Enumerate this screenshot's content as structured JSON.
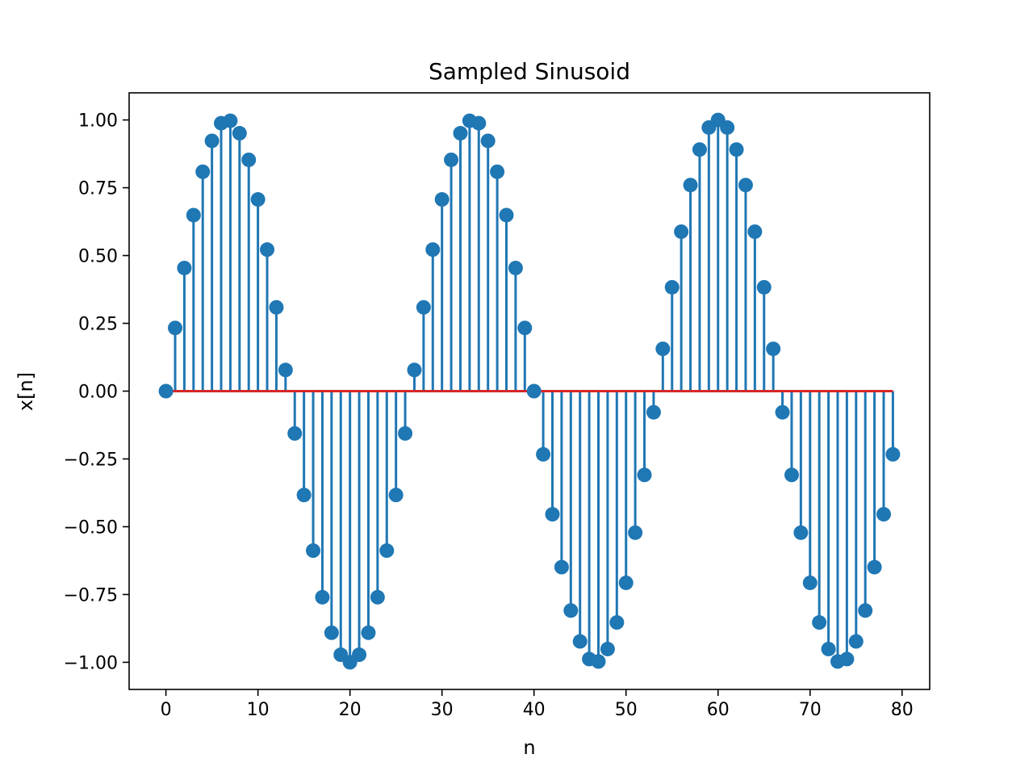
{
  "chart_data": {
    "type": "stem",
    "title": "Sampled Sinusoid",
    "xlabel": "n",
    "ylabel": "x[n]",
    "xlim": [
      -4,
      83
    ],
    "ylim": [
      -1.1,
      1.1
    ],
    "xticks": [
      0,
      10,
      20,
      30,
      40,
      50,
      60,
      70,
      80
    ],
    "xtick_labels": [
      "0",
      "10",
      "20",
      "30",
      "40",
      "50",
      "60",
      "70",
      "80"
    ],
    "yticks": [
      1.0,
      0.75,
      0.5,
      0.25,
      0.0,
      -0.25,
      -0.5,
      -0.75,
      -1.0
    ],
    "ytick_labels": [
      "1.00",
      "0.75",
      "0.50",
      "0.25",
      "0.00",
      "−0.25",
      "−0.50",
      "−0.75",
      "−1.00"
    ],
    "grid": false,
    "colors": {
      "stem": "#1f77b4",
      "baseline": "#d62728"
    },
    "x": [
      0,
      1,
      2,
      3,
      4,
      5,
      6,
      7,
      8,
      9,
      10,
      11,
      12,
      13,
      14,
      15,
      16,
      17,
      18,
      19,
      20,
      21,
      22,
      23,
      24,
      25,
      26,
      27,
      28,
      29,
      30,
      31,
      32,
      33,
      34,
      35,
      36,
      37,
      38,
      39,
      40,
      41,
      42,
      43,
      44,
      45,
      46,
      47,
      48,
      49,
      50,
      51,
      52,
      53,
      54,
      55,
      56,
      57,
      58,
      59,
      60,
      61,
      62,
      63,
      64,
      65,
      66,
      67,
      68,
      69,
      70,
      71,
      72,
      73,
      74,
      75,
      76,
      77,
      78,
      79
    ],
    "values": [
      0.0,
      0.233,
      0.454,
      0.649,
      0.809,
      0.923,
      0.988,
      0.997,
      0.951,
      0.853,
      0.707,
      0.522,
      0.309,
      0.078,
      -0.156,
      -0.383,
      -0.588,
      -0.76,
      -0.891,
      -0.972,
      -1.0,
      -0.972,
      -0.891,
      -0.76,
      -0.588,
      -0.383,
      -0.156,
      0.078,
      0.309,
      0.522,
      0.707,
      0.853,
      0.951,
      0.997,
      0.988,
      0.923,
      0.809,
      0.649,
      0.454,
      0.233,
      0.0,
      -0.233,
      -0.454,
      -0.649,
      -0.809,
      -0.923,
      -0.988,
      -0.997,
      -0.951,
      -0.853,
      -0.707,
      -0.522,
      -0.309,
      -0.078,
      0.156,
      0.383,
      0.588,
      0.76,
      0.891,
      0.972,
      1.0,
      0.972,
      0.891,
      0.76,
      0.588,
      0.383,
      0.156,
      -0.078,
      -0.309,
      -0.522,
      -0.707,
      -0.853,
      -0.951,
      -0.997,
      -0.988,
      -0.923,
      -0.809,
      -0.649,
      -0.454,
      -0.233
    ]
  }
}
